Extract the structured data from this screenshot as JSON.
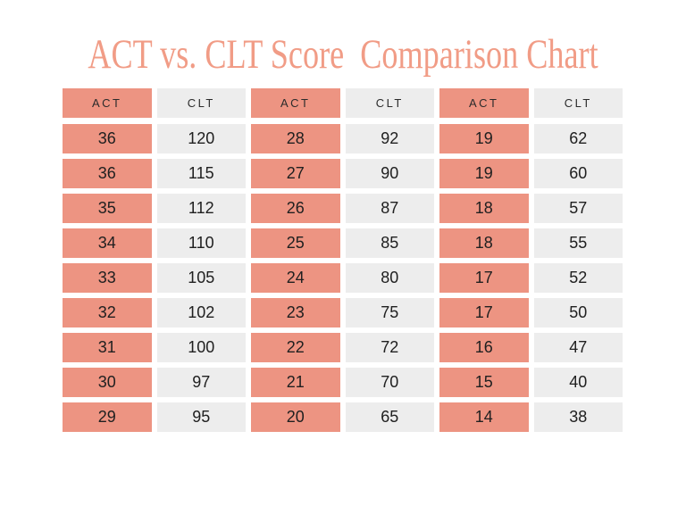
{
  "page": {
    "background": "#ffffff"
  },
  "title": {
    "text": "ACT vs. CLT Score  Comparison Chart",
    "color": "#F19C86"
  },
  "colors": {
    "act_cell": "#ED9482",
    "clt_cell": "#EDEDED",
    "cell_text": "#202020"
  },
  "table": {
    "columns": [
      {
        "label": "ACT",
        "type": "act"
      },
      {
        "label": "CLT",
        "type": "clt"
      },
      {
        "label": "ACT",
        "type": "act"
      },
      {
        "label": "CLT",
        "type": "clt"
      },
      {
        "label": "ACT",
        "type": "act"
      },
      {
        "label": "CLT",
        "type": "clt"
      }
    ],
    "rows": [
      [
        "36",
        "120",
        "28",
        "92",
        "19",
        "62"
      ],
      [
        "36",
        "115",
        "27",
        "90",
        "19",
        "60"
      ],
      [
        "35",
        "112",
        "26",
        "87",
        "18",
        "57"
      ],
      [
        "34",
        "110",
        "25",
        "85",
        "18",
        "55"
      ],
      [
        "33",
        "105",
        "24",
        "80",
        "17",
        "52"
      ],
      [
        "32",
        "102",
        "23",
        "75",
        "17",
        "50"
      ],
      [
        "31",
        "100",
        "22",
        "72",
        "16",
        "47"
      ],
      [
        "30",
        "97",
        "21",
        "70",
        "15",
        "40"
      ],
      [
        "29",
        "95",
        "20",
        "65",
        "14",
        "38"
      ]
    ]
  },
  "chart_data": {
    "type": "table",
    "title": "ACT vs. CLT Score  Comparison Chart",
    "columns": [
      "ACT",
      "CLT",
      "ACT",
      "CLT",
      "ACT",
      "CLT"
    ],
    "rows": [
      [
        36,
        120,
        28,
        92,
        19,
        62
      ],
      [
        36,
        115,
        27,
        90,
        19,
        60
      ],
      [
        35,
        112,
        26,
        87,
        18,
        57
      ],
      [
        34,
        110,
        25,
        85,
        18,
        55
      ],
      [
        33,
        105,
        24,
        80,
        17,
        52
      ],
      [
        32,
        102,
        23,
        75,
        17,
        50
      ],
      [
        31,
        100,
        22,
        72,
        16,
        47
      ],
      [
        30,
        97,
        21,
        70,
        15,
        40
      ],
      [
        29,
        95,
        20,
        65,
        14,
        38
      ]
    ],
    "layout_hints": {
      "act_columns_highlighted": true,
      "highlight_color": "#ED9482",
      "alt_column_color": "#EDEDED"
    }
  }
}
